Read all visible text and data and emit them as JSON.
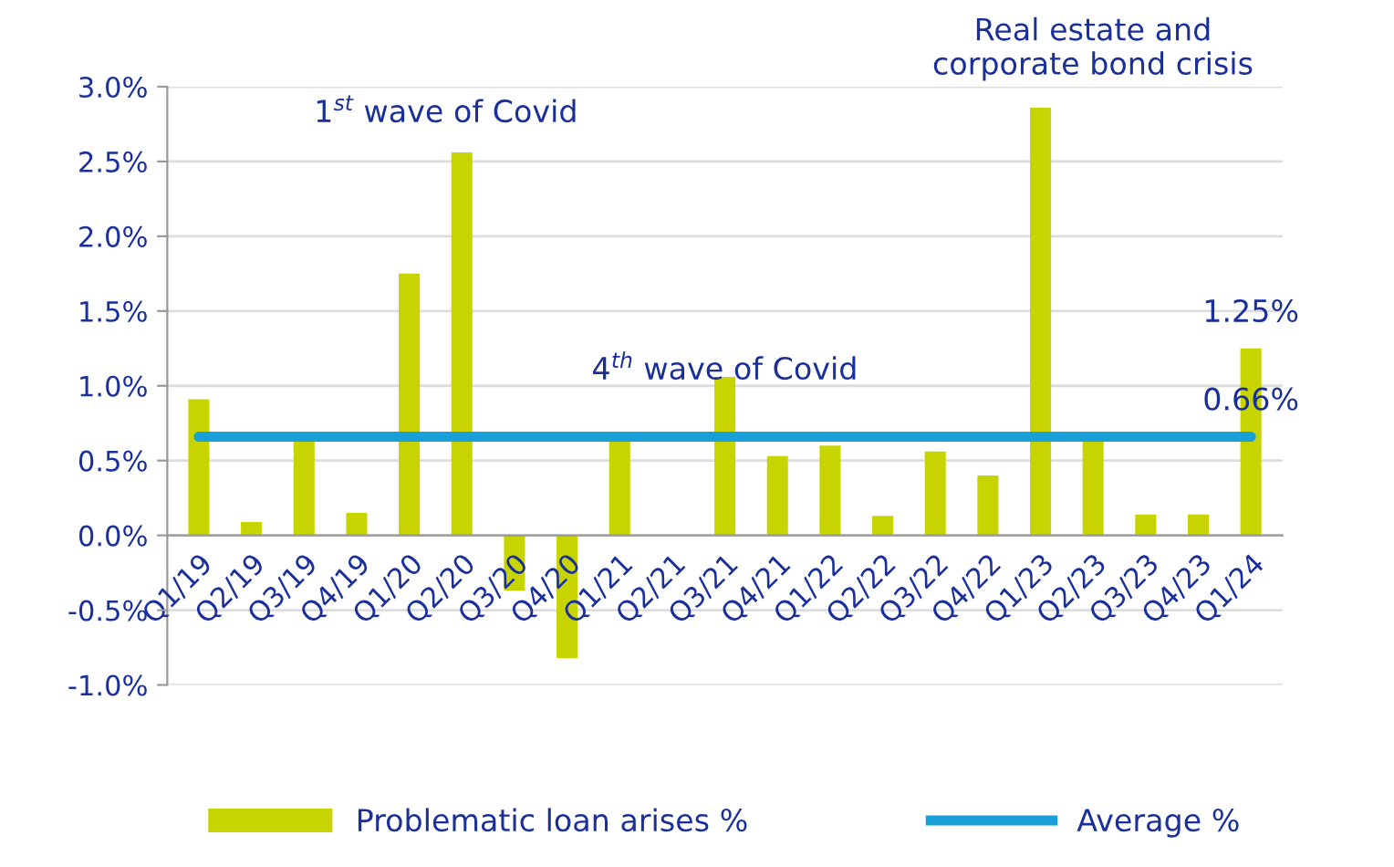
{
  "chart_data": {
    "type": "bar",
    "categories": [
      "Q1/19",
      "Q2/19",
      "Q3/19",
      "Q4/19",
      "Q1/20",
      "Q2/20",
      "Q3/20",
      "Q4/20",
      "Q1/21",
      "Q2/21",
      "Q3/21",
      "Q4/21",
      "Q1/22",
      "Q2/22",
      "Q3/22",
      "Q4/22",
      "Q1/23",
      "Q2/23",
      "Q3/23",
      "Q4/23",
      "Q1/24"
    ],
    "series": [
      {
        "name": "Problematic loan arises %",
        "color": "#c8d400",
        "values": [
          0.91,
          0.09,
          0.65,
          0.15,
          1.75,
          2.56,
          -0.37,
          -0.82,
          0.65,
          0,
          1.06,
          0.53,
          0.6,
          0.13,
          0.56,
          0.4,
          2.86,
          0.65,
          0.14,
          0.14,
          1.25
        ]
      },
      {
        "name": "Average %",
        "type": "line",
        "color": "#1aa0d8",
        "values": [
          0.66,
          0.66,
          0.66,
          0.66,
          0.66,
          0.66,
          0.66,
          0.66,
          0.66,
          0.66,
          0.66,
          0.66,
          0.66,
          0.66,
          0.66,
          0.66,
          0.66,
          0.66,
          0.66,
          0.66,
          0.66
        ]
      }
    ],
    "ylim": [
      -1.0,
      3.0
    ],
    "yticks": [
      {
        "value": -1.0,
        "label": "-1.0%"
      },
      {
        "value": -0.5,
        "label": "-0.5%"
      },
      {
        "value": 0.0,
        "label": "0.0%"
      },
      {
        "value": 0.5,
        "label": "0.5%"
      },
      {
        "value": 1.0,
        "label": "1.0%"
      },
      {
        "value": 1.5,
        "label": "1.5%"
      },
      {
        "value": 2.0,
        "label": "2.0%"
      },
      {
        "value": 2.5,
        "label": "2.5%"
      },
      {
        "value": 3.0,
        "label": "3.0%"
      }
    ],
    "grid": "y",
    "legend": "bottom",
    "marker": "none",
    "annotations": [
      "1$^{st}$ wave of Covid",
      "4$^{th}$ wave of Covid",
      "Real estate and\ncorporate bond crisis",
      {
        "text": "1.25%",
        "x": "Q1/24",
        "y": 1.25
      },
      {
        "text": "0.66%",
        "x": "Q1/24",
        "y": 0.66
      }
    ]
  }
}
